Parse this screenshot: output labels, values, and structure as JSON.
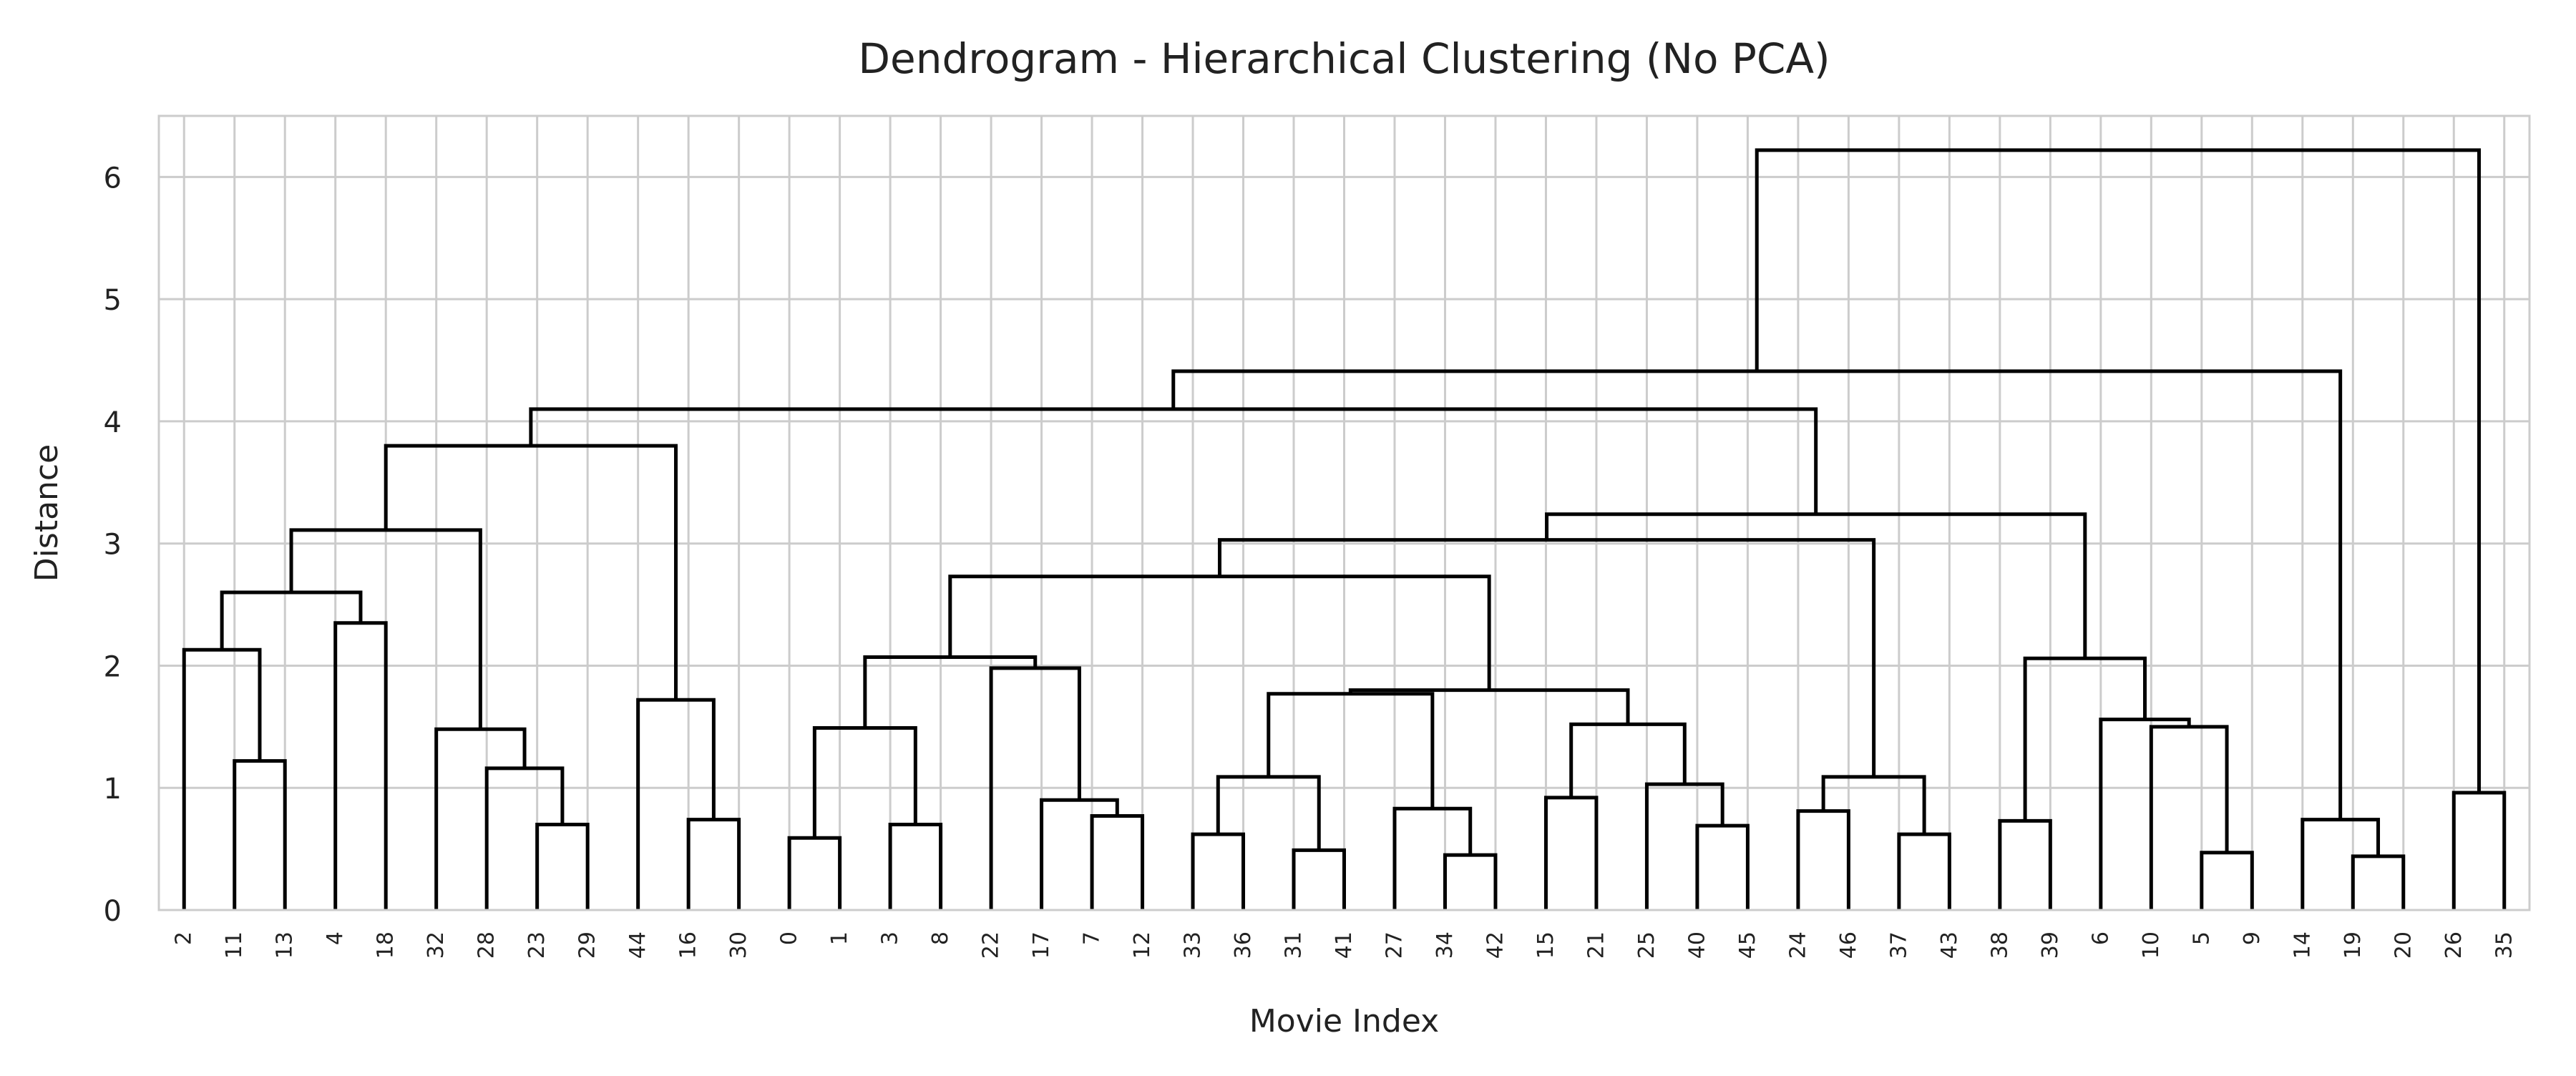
{
  "chart_data": {
    "type": "dendrogram",
    "title": "Dendrogram - Hierarchical Clustering (No PCA)",
    "xlabel": "Movie Index",
    "ylabel": "Distance",
    "ylim": [
      0,
      6.5
    ],
    "yticks": [
      0,
      1,
      2,
      3,
      4,
      5,
      6
    ],
    "grid": true,
    "leaves": [
      "2",
      "11",
      "13",
      "4",
      "18",
      "32",
      "28",
      "23",
      "29",
      "44",
      "16",
      "30",
      "0",
      "1",
      "3",
      "8",
      "22",
      "17",
      "7",
      "12",
      "33",
      "36",
      "31",
      "41",
      "27",
      "34",
      "42",
      "15",
      "21",
      "25",
      "40",
      "45",
      "24",
      "46",
      "37",
      "43",
      "38",
      "39",
      "6",
      "10",
      "5",
      "9",
      "14",
      "19",
      "20",
      "26",
      "35"
    ],
    "merges": [
      {
        "left": "11",
        "right": "13",
        "height": 1.22
      },
      {
        "left": "2",
        "right": "(11,13)",
        "height": 2.13
      },
      {
        "left": "4",
        "right": "18",
        "height": 2.35
      },
      {
        "left": "23",
        "right": "29",
        "height": 0.7
      },
      {
        "left": "28",
        "right": "(23,29)",
        "height": 1.16
      },
      {
        "left": "32",
        "right": "(28,(23,29))",
        "height": 1.48
      },
      {
        "left": "16",
        "right": "30",
        "height": 0.74
      },
      {
        "left": "44",
        "right": "(16,30)",
        "height": 1.72
      },
      {
        "left": "(32,(28,(23,29)))",
        "right": "(44,(16,30))",
        "height": 2.6
      },
      {
        "left": "(4,18)",
        "right": "((32,...),(44,...))",
        "height": 3.11
      },
      {
        "left": "(2,(11,13))",
        "right": "((4,18),...)",
        "height": 3.8
      },
      {
        "left": "0",
        "right": "1",
        "height": 0.59
      },
      {
        "left": "3",
        "right": "8",
        "height": 0.7
      },
      {
        "left": "(0,1)",
        "right": "(3,8)",
        "height": 1.49
      },
      {
        "left": "7",
        "right": "12",
        "height": 0.77
      },
      {
        "left": "17",
        "right": "(7,12)",
        "height": 0.9
      },
      {
        "left": "22",
        "right": "(17,(7,12))",
        "height": 1.98
      },
      {
        "left": "33",
        "right": "36",
        "height": 0.62
      },
      {
        "left": "31",
        "right": "41",
        "height": 0.49
      },
      {
        "left": "34",
        "right": "42",
        "height": 0.45
      },
      {
        "left": "27",
        "right": "(34,42)",
        "height": 0.83
      },
      {
        "left": "(31,41)",
        "right": "(27,(34,42))",
        "height": 1.09
      },
      {
        "left": "(33,36)",
        "right": "((31,41),...)",
        "height": 1.77
      },
      {
        "left": "15",
        "right": "21",
        "height": 0.92
      },
      {
        "left": "40",
        "right": "45",
        "height": 0.69
      },
      {
        "left": "25",
        "right": "(40,45)",
        "height": 1.03
      },
      {
        "left": "(15,21)",
        "right": "(25,(40,45))",
        "height": 1.52
      },
      {
        "left": "24",
        "right": "46",
        "height": 0.81
      },
      {
        "left": "37",
        "right": "43",
        "height": 0.62
      },
      {
        "left": "38",
        "right": "39",
        "height": 0.73
      },
      {
        "left": "(37,43)",
        "right": "(38,39)",
        "height": 1.09
      },
      {
        "left": "(24,46)",
        "right": "((37,43),(38,39))",
        "height": 1.8
      },
      {
        "left": "((15,21),...)",
        "right": "((24,46),...)",
        "height": 2.07
      },
      {
        "left": "((33,36),...)",
        "right": "(((15,21),...),...)",
        "height": 2.73
      },
      {
        "left": "(22,...)",
        "right": "(((33,36),...),...)",
        "height": 3.03
      },
      {
        "left": "5",
        "right": "9",
        "height": 0.47
      },
      {
        "left": "10",
        "right": "(5,9)",
        "height": 1.5
      },
      {
        "left": "6",
        "right": "(10,(5,9))",
        "height": 1.56
      },
      {
        "left": "19",
        "right": "20",
        "height": 0.44
      },
      {
        "left": "14",
        "right": "(19,20)",
        "height": 0.74
      },
      {
        "left": "26",
        "right": "35",
        "height": 0.96
      },
      {
        "left": "(14,(19,20))",
        "right": "(26,35)",
        "height": 2.06
      },
      {
        "left": "(6,...)",
        "right": "((14,...),(26,35))",
        "height": 3.24
      },
      {
        "left": "((22,...),...)",
        "right": "((6,...),...)",
        "height": 4.1
      },
      {
        "left": "((0,1),(3,8))",
        "right": "(((22,...),...),...)",
        "height": 4.41
      },
      {
        "left": "((2,...),...)",
        "right": "(((0,1),(3,8)),...)",
        "height": 6.22
      }
    ]
  }
}
